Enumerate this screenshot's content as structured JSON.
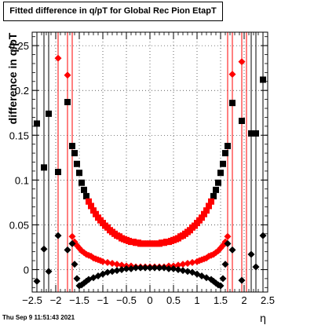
{
  "title": "Fitted difference in q/pT for Global Rec Pion EtapT",
  "timestamp": "Thu Sep  9 11:51:43 2021",
  "chart_data": {
    "type": "scatter",
    "title": "Fitted difference in q/pT for Global Rec Pion EtapT",
    "xlabel": "η",
    "ylabel": "difference in q/pT",
    "xlim": [
      -2.5,
      2.5
    ],
    "ylim": [
      -0.025,
      0.265
    ],
    "xticks": [
      -2.5,
      -2,
      -1.5,
      -1,
      -0.5,
      0,
      0.5,
      1,
      1.5,
      2,
      2.5
    ],
    "xtick_labels": [
      "−2.5",
      "−2",
      "−1.5",
      "−1",
      "−0.5",
      "0",
      "0.5",
      "1",
      "1.5",
      "2",
      "2.5"
    ],
    "yticks": [
      0,
      0.05,
      0.1,
      0.15,
      0.2,
      0.25
    ],
    "ytick_labels": [
      "0",
      "0.05",
      "0.1",
      "0.15",
      "0.2",
      "0.25"
    ],
    "grid": true,
    "legend": "none",
    "series": [
      {
        "marker": "square",
        "color": "#000000",
        "x": [
          -2.4,
          -2.25,
          -2.15,
          -1.95,
          -1.75,
          -1.65,
          -1.6,
          -1.55,
          -1.5,
          -1.45,
          -1.4,
          -1.35,
          1.35,
          1.4,
          1.45,
          1.5,
          1.55,
          1.6,
          1.65,
          1.75,
          1.95,
          2.15,
          2.25,
          2.4
        ],
        "y": [
          0.163,
          0.114,
          0.174,
          0.109,
          0.187,
          0.138,
          0.13,
          0.118,
          0.108,
          0.097,
          0.089,
          0.082,
          0.082,
          0.089,
          0.097,
          0.108,
          0.118,
          0.13,
          0.138,
          0.186,
          0.166,
          0.152,
          0.152,
          0.212
        ]
      },
      {
        "marker": "square",
        "color": "#ff0000",
        "x": [
          -1.3,
          -1.25,
          -1.2,
          -1.15,
          -1.1,
          -1.05,
          -1.0,
          -0.95,
          -0.9,
          -0.85,
          -0.8,
          -0.75,
          -0.7,
          -0.65,
          -0.6,
          -0.55,
          -0.5,
          -0.45,
          -0.4,
          -0.35,
          -0.3,
          -0.25,
          -0.2,
          -0.15,
          -0.1,
          -0.05,
          0,
          0.05,
          0.1,
          0.15,
          0.2,
          0.25,
          0.3,
          0.35,
          0.4,
          0.45,
          0.5,
          0.55,
          0.6,
          0.65,
          0.7,
          0.75,
          0.8,
          0.85,
          0.9,
          0.95,
          1.0,
          1.05,
          1.1,
          1.15,
          1.2,
          1.25,
          1.3
        ],
        "y": [
          0.076,
          0.071,
          0.066,
          0.062,
          0.058,
          0.055,
          0.052,
          0.049,
          0.047,
          0.044,
          0.042,
          0.04,
          0.038,
          0.037,
          0.035,
          0.034,
          0.033,
          0.032,
          0.031,
          0.031,
          0.03,
          0.03,
          0.029,
          0.029,
          0.029,
          0.029,
          0.029,
          0.029,
          0.029,
          0.029,
          0.029,
          0.03,
          0.03,
          0.031,
          0.031,
          0.032,
          0.033,
          0.034,
          0.035,
          0.037,
          0.038,
          0.04,
          0.042,
          0.044,
          0.047,
          0.049,
          0.052,
          0.055,
          0.058,
          0.062,
          0.066,
          0.071,
          0.076
        ]
      },
      {
        "marker": "diamond",
        "color": "#ff0000",
        "x": [
          -1.95,
          -1.75,
          -1.65,
          -1.6,
          -1.55,
          -1.5,
          -1.45,
          -1.4,
          -1.35,
          -1.3,
          -1.25,
          -1.2,
          -1.15,
          -1.1,
          -1.05,
          -1.0,
          -0.9,
          -0.8,
          -0.7,
          -0.6,
          -0.5,
          -0.4,
          -0.3,
          -0.2,
          -0.1,
          0,
          0.1,
          0.2,
          0.3,
          0.4,
          0.5,
          0.6,
          0.7,
          0.8,
          0.9,
          1.0,
          1.05,
          1.1,
          1.15,
          1.2,
          1.25,
          1.3,
          1.35,
          1.4,
          1.45,
          1.5,
          1.55,
          1.6,
          1.65,
          1.75,
          1.95
        ],
        "y": [
          0.236,
          0.217,
          0.037,
          0.031,
          0.027,
          0.024,
          0.021,
          0.019,
          0.017,
          0.016,
          0.015,
          0.013,
          0.012,
          0.011,
          0.01,
          0.009,
          0.008,
          0.007,
          0.006,
          0.005,
          0.004,
          0.004,
          0.003,
          0.003,
          0.003,
          0.003,
          0.003,
          0.003,
          0.003,
          0.004,
          0.004,
          0.005,
          0.006,
          0.007,
          0.008,
          0.009,
          0.01,
          0.011,
          0.012,
          0.013,
          0.015,
          0.016,
          0.017,
          0.019,
          0.021,
          0.024,
          0.027,
          0.031,
          0.037,
          0.218,
          0.232
        ]
      },
      {
        "marker": "diamond",
        "color": "#000000",
        "x": [
          -2.4,
          -2.25,
          -2.15,
          -1.95,
          -1.75,
          -1.65,
          -1.6,
          -1.55,
          -1.5,
          -1.45,
          -1.4,
          -1.35,
          -1.3,
          -1.2,
          -1.1,
          -1.0,
          -0.9,
          -0.8,
          -0.7,
          -0.6,
          -0.5,
          -0.4,
          -0.3,
          -0.2,
          -0.1,
          0,
          0.1,
          0.2,
          0.3,
          0.4,
          0.5,
          0.6,
          0.7,
          0.8,
          0.9,
          1.0,
          1.1,
          1.2,
          1.3,
          1.35,
          1.4,
          1.45,
          1.5,
          1.55,
          1.6,
          1.65,
          1.75,
          1.95,
          2.15,
          2.25,
          2.4
        ],
        "y": [
          -0.013,
          0.023,
          -0.002,
          0.038,
          0.022,
          0.029,
          0.006,
          -0.01,
          -0.018,
          -0.017,
          -0.015,
          -0.013,
          -0.011,
          -0.009,
          -0.007,
          -0.005,
          -0.003,
          -0.002,
          -0.001,
          0.0,
          0.001,
          0.001,
          0.002,
          0.002,
          0.002,
          0.002,
          0.002,
          0.002,
          0.002,
          0.001,
          0.001,
          0.0,
          -0.001,
          -0.002,
          -0.003,
          -0.005,
          -0.007,
          -0.009,
          -0.011,
          -0.013,
          -0.015,
          -0.017,
          -0.018,
          -0.01,
          0.006,
          0.029,
          0.022,
          -0.012,
          0.017,
          0.003,
          0.038
        ]
      }
    ]
  }
}
